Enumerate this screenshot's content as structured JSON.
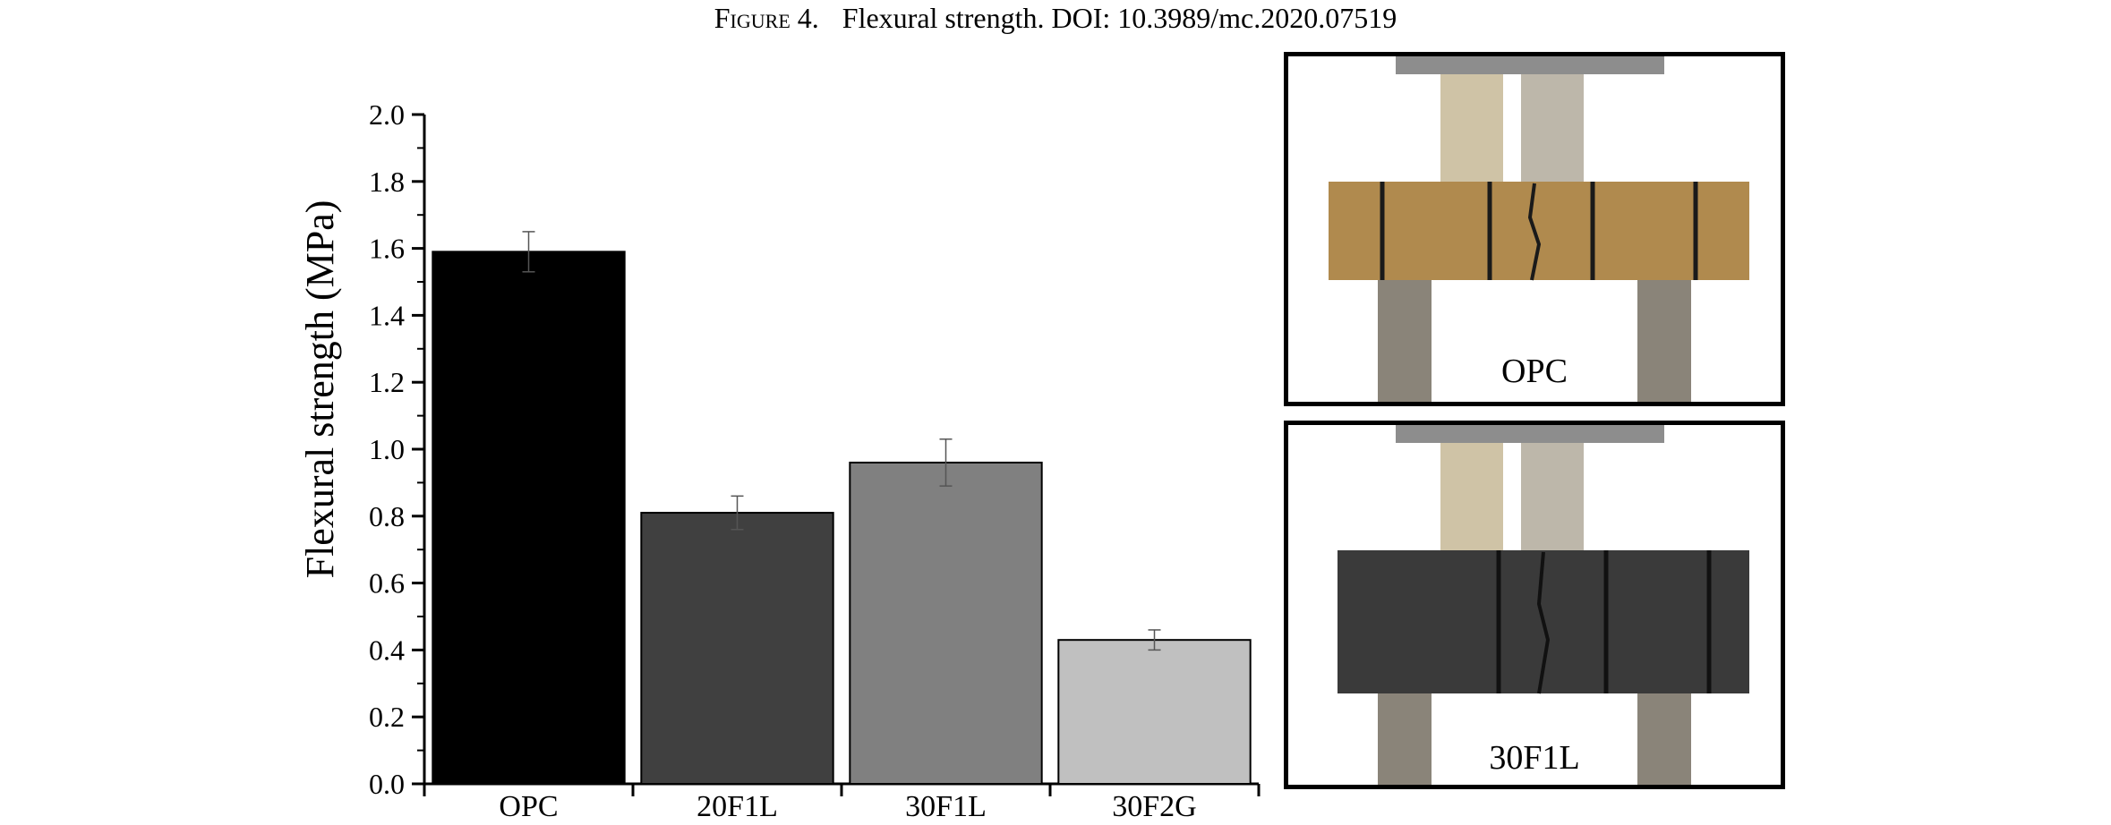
{
  "caption": {
    "figure": "Figure 4.",
    "text": "Flexural strength. DOI: 10.3989/mc.2020.07519"
  },
  "chart_data": {
    "type": "bar",
    "categories": [
      "OPC",
      "20F1L",
      "30F1L",
      "30F2G"
    ],
    "values": [
      1.59,
      0.81,
      0.96,
      0.43
    ],
    "errors": [
      0.06,
      0.05,
      0.07,
      0.03
    ],
    "colors": [
      "#000000",
      "#404040",
      "#808080",
      "#c0c0c0"
    ],
    "title": "",
    "xlabel": "",
    "ylabel": "Flexural strength (MPa)",
    "ylim": [
      0,
      2.0
    ],
    "yticks": [
      "0.0",
      "0.2",
      "0.4",
      "0.6",
      "0.8",
      "1.0",
      "1.2",
      "1.4",
      "1.6",
      "1.8",
      "2.0"
    ],
    "grid": false,
    "legend": "none"
  },
  "photos": [
    {
      "label": "OPC",
      "specimen_color": "#b08a4e"
    },
    {
      "label": "30F1L",
      "specimen_color": "#3a3a3a"
    }
  ]
}
